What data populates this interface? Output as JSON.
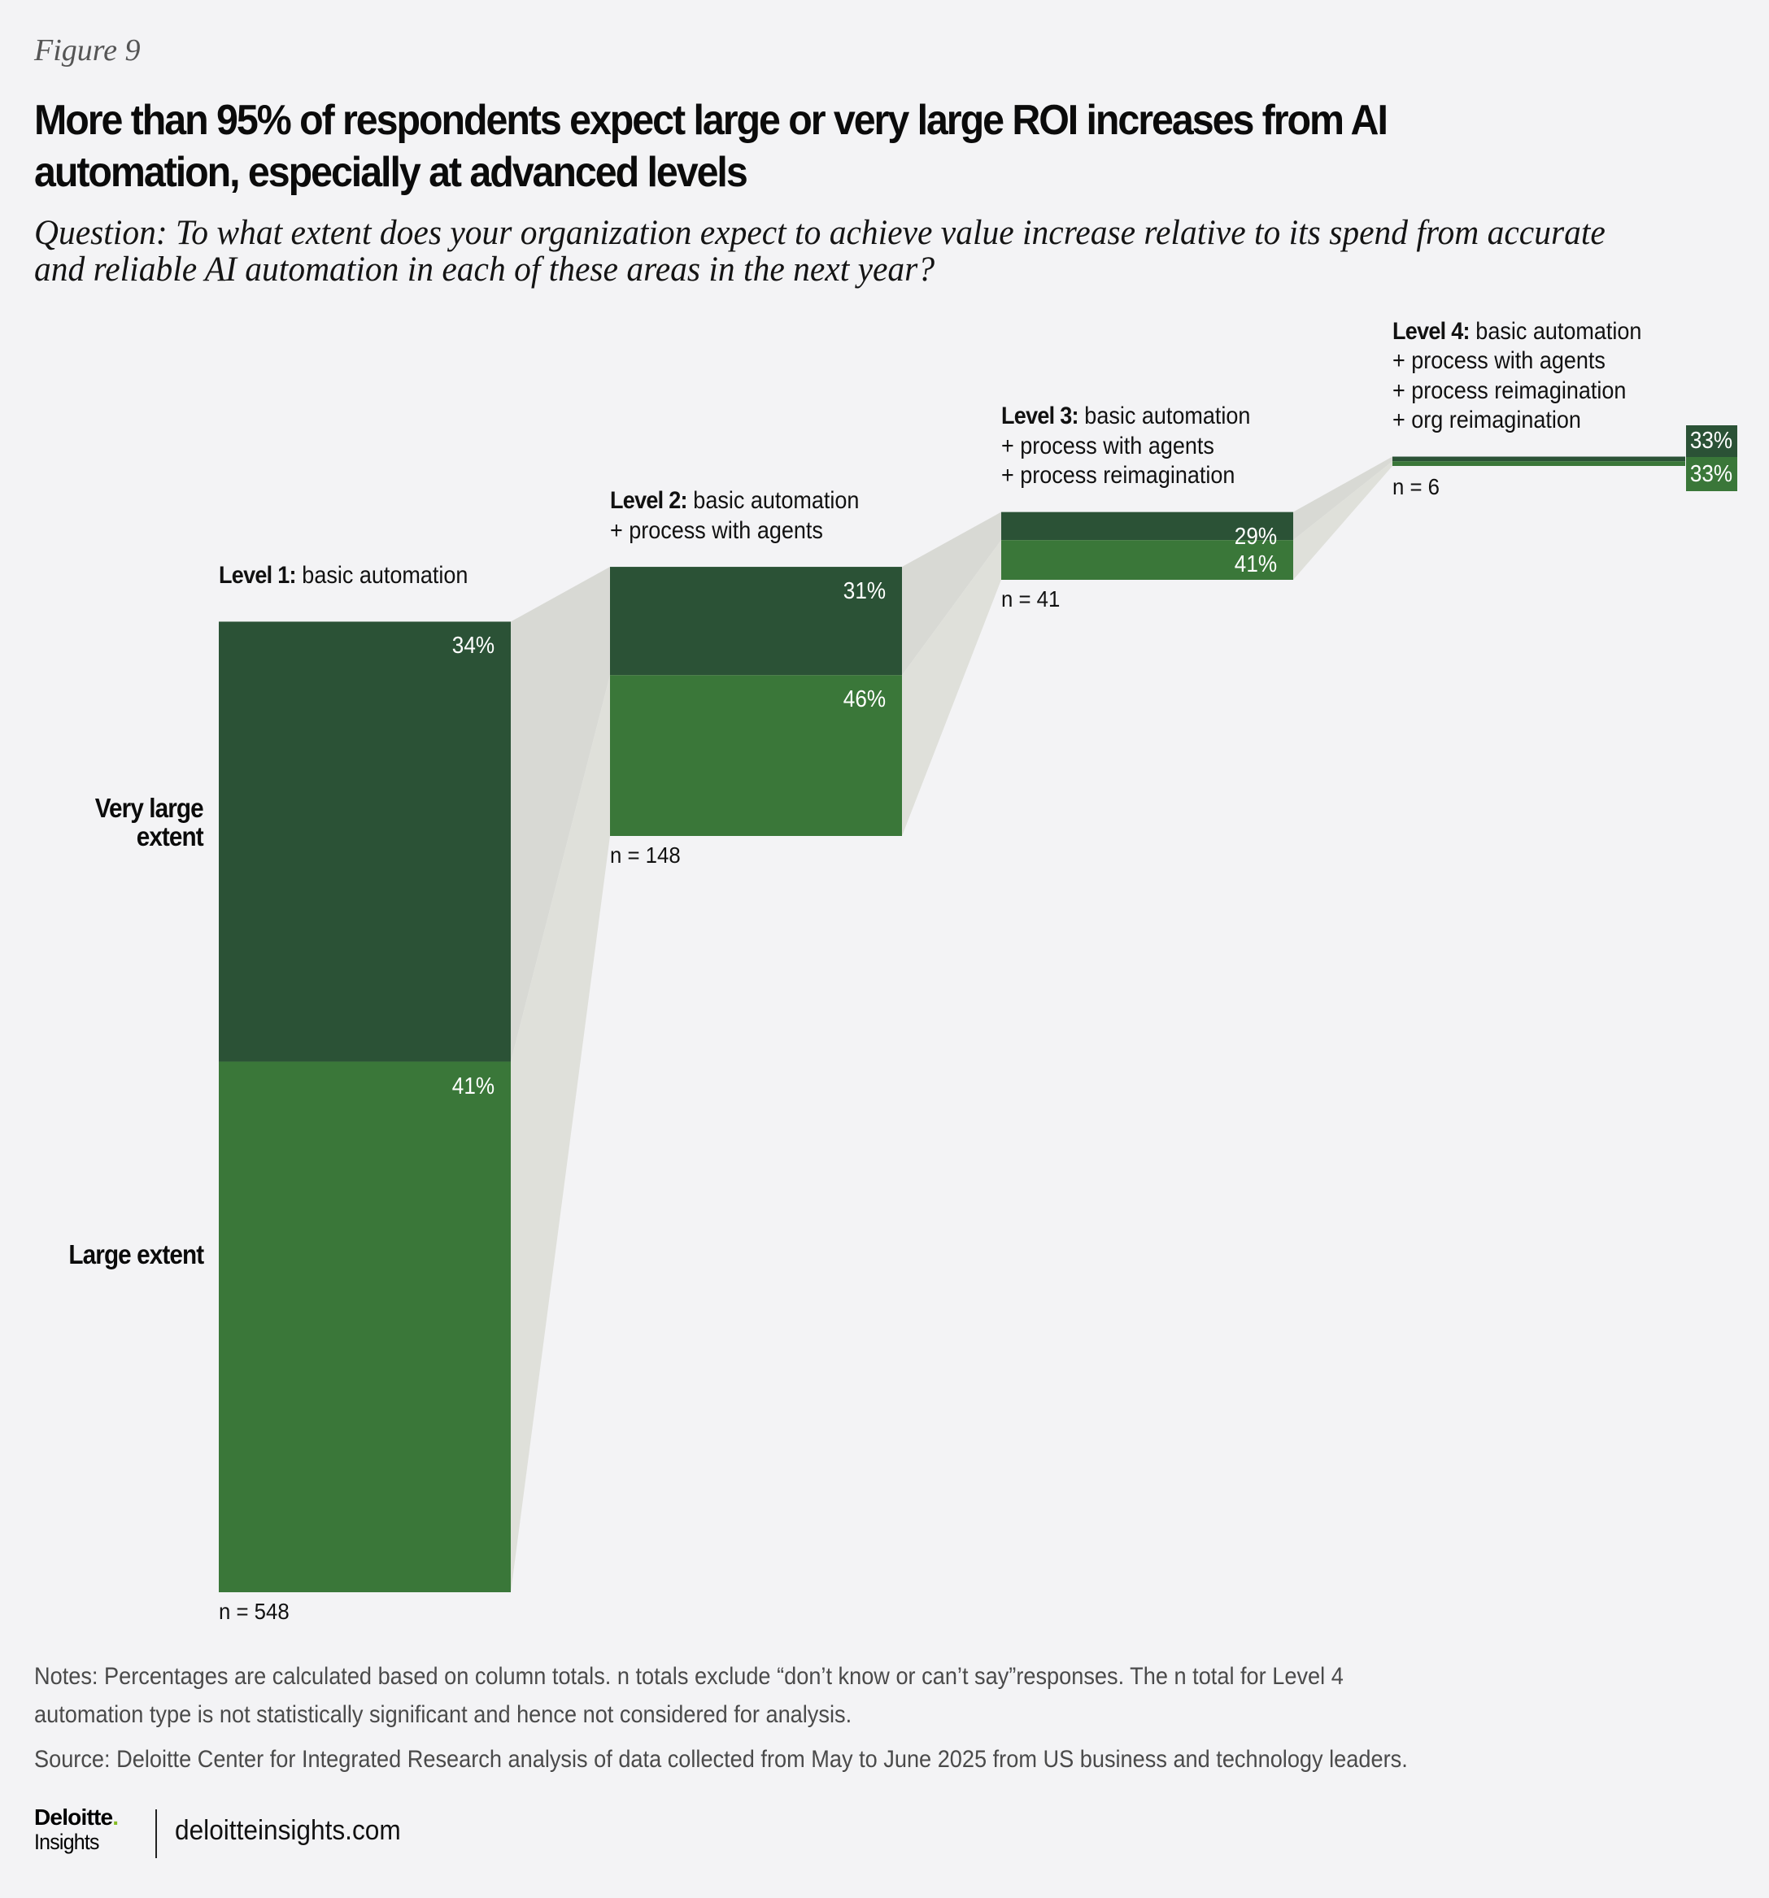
{
  "figure_label": "Figure 9",
  "title": {
    "line1": "More than 95% of respondents expect large or very large ROI increases from AI",
    "line2": "automation, especially at advanced levels"
  },
  "question": {
    "line1": "Question: To what extent does your organization expect to achieve value increase relative to its spend from accurate",
    "line2": "and reliable AI automation in each of these areas in the next year?"
  },
  "colors": {
    "very_large": "#2b5236",
    "large": "#3a7739",
    "connector_top": "#d8d9d4",
    "connector_bottom": "#dfe0da",
    "background": "#f3f3f5"
  },
  "chart_data": {
    "type": "bar",
    "subtype": "stacked-funnel",
    "title": "More than 95% of respondents expect large or very large ROI increases from AI automation, especially at advanced levels",
    "row_labels": [
      "Very large extent",
      "Large extent"
    ],
    "categories": [
      "Level 1: basic automation",
      "Level 2: basic automation + process with agents",
      "Level 3: basic automation + process with agents + process reimagination",
      "Level 4: basic automation + process with agents + process reimagination + org reimagination"
    ],
    "levels": [
      {
        "bold": "Level 1:",
        "lines": [
          "basic automation"
        ],
        "n": 548,
        "n_label": "n = 548",
        "very_large": 34,
        "large": 41,
        "very_large_label": "34%",
        "large_label": "41%"
      },
      {
        "bold": "Level 2:",
        "lines": [
          "basic automation",
          "+ process with agents"
        ],
        "n": 148,
        "n_label": "n = 148",
        "very_large": 31,
        "large": 46,
        "very_large_label": "31%",
        "large_label": "46%"
      },
      {
        "bold": "Level 3:",
        "lines": [
          "basic automation",
          "+ process with agents",
          "+ process reimagination"
        ],
        "n": 41,
        "n_label": "n = 41",
        "very_large": 29,
        "large": 41,
        "very_large_label": "29%",
        "large_label": "41%"
      },
      {
        "bold": "Level 4:",
        "lines": [
          "basic automation",
          "+ process with agents",
          "+ process reimagination",
          "+ org reimagination"
        ],
        "n": 6,
        "n_label": "n = 6",
        "very_large": 33,
        "large": 33,
        "very_large_label": "33%",
        "large_label": "33%"
      }
    ],
    "series": [
      {
        "name": "Very large extent",
        "values": [
          34,
          31,
          29,
          33
        ]
      },
      {
        "name": "Large extent",
        "values": [
          41,
          46,
          41,
          33
        ]
      }
    ],
    "bar_height_encoding": "n × percentage",
    "xlabel": "",
    "ylabel": ""
  },
  "notes": {
    "line1": "Notes: Percentages are calculated based on column totals. n totals exclude “don’t know or can’t say”responses. The n total for Level 4",
    "line2": "automation type is not statistically significant and hence not considered for analysis.",
    "source": "Source: Deloitte Center for Integrated Research analysis of data collected from May to June 2025 from US business and technology leaders."
  },
  "footer": {
    "brand": "Deloitte",
    "brand_dot": ".",
    "sub_brand": "Insights",
    "url": "deloitteinsights.com"
  }
}
